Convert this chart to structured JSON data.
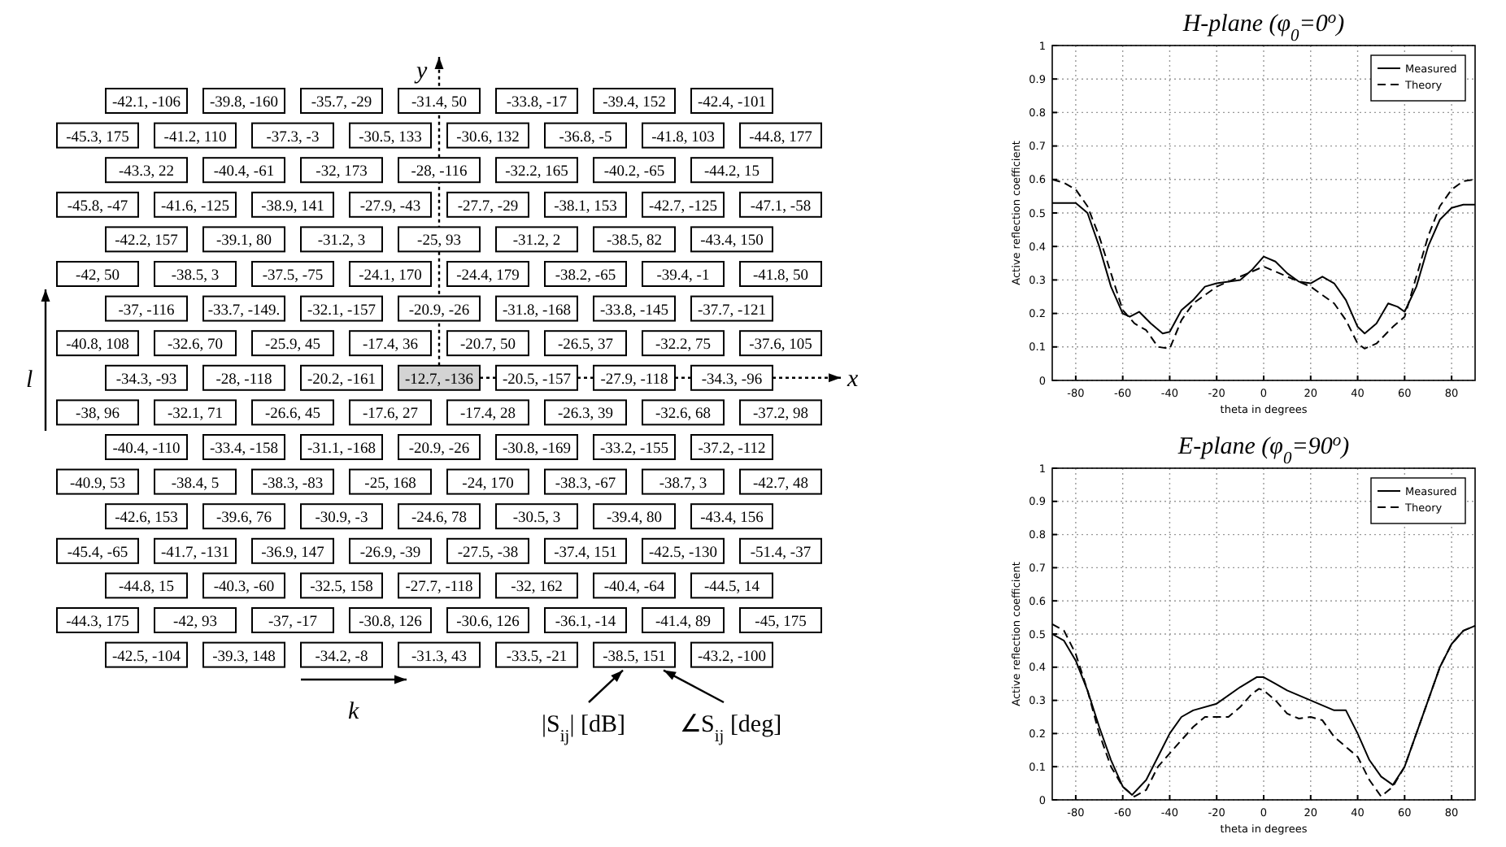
{
  "chart_data": [
    {
      "type": "other",
      "xlabel": "x",
      "ylabel": "y",
      "annotations": [
        "l",
        "k",
        "|S$_{ij}$| [dB]",
        "∠S$_{ij}$ [deg]"
      ],
      "cell_labels": [
        [
          "-42.1, -106",
          "-39.8, -160",
          "-35.7, -29",
          "-31.4, 50",
          "-33.8, -17",
          "-39.4, 152",
          "-42.4, -101"
        ],
        [
          "-45.3, 175",
          "-41.2, 110",
          "-37.3, -3",
          "-30.5, 133",
          "-30.6, 132",
          "-36.8, -5",
          "-41.8, 103",
          "-44.8, 177"
        ],
        [
          "-43.3, 22",
          "-40.4, -61",
          "-32, 173",
          "-28, -116",
          "-32.2, 165",
          "-40.2, -65",
          "-44.2, 15"
        ],
        [
          "-45.8, -47",
          "-41.6, -125",
          "-38.9, 141",
          "-27.9, -43",
          "-27.7, -29",
          "-38.1, 153",
          "-42.7, -125",
          "-47.1, -58"
        ],
        [
          "-42.2, 157",
          "-39.1, 80",
          "-31.2, 3",
          "-25, 93",
          "-31.2, 2",
          "-38.5, 82",
          "-43.4, 150"
        ],
        [
          "-42, 50",
          "-38.5, 3",
          "-37.5, -75",
          "-24.1, 170",
          "-24.4, 179",
          "-38.2, -65",
          "-39.4, -1",
          "-41.8, 50"
        ],
        [
          "-37, -116",
          "-33.7, -149.",
          "-32.1, -157",
          "-20.9, -26",
          "-31.8, -168",
          "-33.8, -145",
          "-37.7, -121"
        ],
        [
          "-40.8, 108",
          "-32.6, 70",
          "-25.9, 45",
          "-17.4, 36",
          "-20.7, 50",
          "-26.5, 37",
          "-32.2, 75",
          "-37.6, 105"
        ],
        [
          "-34.3, -93",
          "-28, -118",
          "-20.2, -161",
          "-12.7, -136",
          "-20.5, -157",
          "-27.9, -118",
          "-34.3, -96"
        ],
        [
          "-38, 96",
          "-32.1, 71",
          "-26.6, 45",
          "-17.6, 27",
          "-17.4, 28",
          "-26.3, 39",
          "-32.6, 68",
          "-37.2, 98"
        ],
        [
          "-40.4, -110",
          "-33.4, -158",
          "-31.1, -168",
          "-20.9, -26",
          "-30.8, -169",
          "-33.2, -155",
          "-37.2, -112"
        ],
        [
          "-40.9, 53",
          "-38.4, 5",
          "-38.3, -83",
          "-25, 168",
          "-24, 170",
          "-38.3, -67",
          "-38.7, 3",
          "-42.7, 48"
        ],
        [
          "-42.6, 153",
          "-39.6, 76",
          "-30.9, -3",
          "-24.6, 78",
          "-30.5, 3",
          "-39.4, 80",
          "-43.4, 156"
        ],
        [
          "-45.4, -65",
          "-41.7, -131",
          "-36.9, 147",
          "-26.9, -39",
          "-27.5, -38",
          "-37.4, 151",
          "-42.5, -130",
          "-51.4, -37"
        ],
        [
          "-44.8, 15",
          "-40.3, -60",
          "-32.5, 158",
          "-27.7, -118",
          "-32, 162",
          "-40.4, -64",
          "-44.5, 14"
        ],
        [
          "-44.3, 175",
          "-42, 93",
          "-37, -17",
          "-30.8, 126",
          "-30.6, 126",
          "-36.1, -14",
          "-41.4, 89",
          "-45, 175"
        ],
        [
          "-42.5, -104",
          "-39.3, 148",
          "-34.2, -8",
          "-31.3, 43",
          "-33.5, -21",
          "-38.5, 151",
          "-43.2, -100"
        ]
      ]
    },
    {
      "type": "line",
      "title": "H-plane (φ$_{0}$=0$^{o}$)",
      "xlabel": "theta in degrees",
      "ylabel": "Active reflection coefficient",
      "xlim": [
        -90,
        90
      ],
      "xticks": [
        -80,
        -60,
        -40,
        -20,
        0,
        20,
        40,
        60,
        80
      ],
      "ylim": [
        0,
        1
      ],
      "yticks": [
        0,
        0.1,
        0.2,
        0.3,
        0.4,
        0.5,
        0.6,
        0.7,
        0.8,
        0.9,
        1
      ],
      "grid": true,
      "legend": "top right",
      "series": [
        {
          "name": "Measured",
          "color": "#000000",
          "line_style": "solid",
          "x": [
            -90,
            -80,
            -75,
            -70,
            -65,
            -60,
            -57,
            -53,
            -48,
            -43,
            -40,
            -35,
            -30,
            -25,
            -20,
            -15,
            -10,
            -5,
            0,
            5,
            10,
            15,
            20,
            25,
            30,
            35,
            40,
            43,
            48,
            53,
            57,
            60,
            65,
            70,
            75,
            80,
            85,
            90
          ],
          "values": [
            0.53,
            0.53,
            0.5,
            0.4,
            0.28,
            0.2,
            0.19,
            0.205,
            0.17,
            0.14,
            0.145,
            0.21,
            0.24,
            0.28,
            0.29,
            0.295,
            0.3,
            0.33,
            0.37,
            0.355,
            0.32,
            0.295,
            0.29,
            0.31,
            0.29,
            0.24,
            0.16,
            0.14,
            0.17,
            0.23,
            0.22,
            0.205,
            0.28,
            0.4,
            0.48,
            0.515,
            0.525,
            0.525
          ]
        },
        {
          "name": "Theory",
          "color": "#000000",
          "line_style": "dashed",
          "x": [
            -90,
            -85,
            -80,
            -75,
            -70,
            -65,
            -60,
            -55,
            -50,
            -45,
            -40,
            -35,
            -30,
            -20,
            -10,
            0,
            10,
            20,
            30,
            35,
            40,
            43,
            48,
            55,
            60,
            65,
            70,
            75,
            80,
            85,
            90
          ],
          "values": [
            0.6,
            0.59,
            0.57,
            0.52,
            0.43,
            0.32,
            0.21,
            0.17,
            0.15,
            0.1,
            0.095,
            0.18,
            0.23,
            0.28,
            0.31,
            0.34,
            0.31,
            0.28,
            0.23,
            0.18,
            0.11,
            0.095,
            0.11,
            0.16,
            0.19,
            0.31,
            0.43,
            0.52,
            0.57,
            0.595,
            0.6
          ]
        }
      ]
    },
    {
      "type": "line",
      "title": "E-plane (φ$_{0}$=90$^{o}$)",
      "xlabel": "theta in degrees",
      "ylabel": "Active reflection coefficient",
      "xlim": [
        -90,
        90
      ],
      "xticks": [
        -80,
        -60,
        -40,
        -20,
        0,
        20,
        40,
        60,
        80
      ],
      "ylim": [
        0,
        1
      ],
      "yticks": [
        0,
        0.1,
        0.2,
        0.3,
        0.4,
        0.5,
        0.6,
        0.7,
        0.8,
        0.9,
        1
      ],
      "grid": true,
      "legend": "top right",
      "series": [
        {
          "name": "Measured",
          "color": "#000000",
          "line_style": "solid",
          "x": [
            -90,
            -85,
            -80,
            -75,
            -70,
            -65,
            -60,
            -56,
            -50,
            -45,
            -40,
            -35,
            -30,
            -20,
            -10,
            -3,
            0,
            5,
            10,
            20,
            30,
            35,
            40,
            45,
            50,
            55,
            60,
            65,
            70,
            75,
            80,
            85,
            90
          ],
          "values": [
            0.5,
            0.48,
            0.42,
            0.33,
            0.22,
            0.12,
            0.04,
            0.015,
            0.06,
            0.13,
            0.2,
            0.25,
            0.27,
            0.29,
            0.34,
            0.37,
            0.37,
            0.35,
            0.33,
            0.3,
            0.27,
            0.27,
            0.2,
            0.12,
            0.07,
            0.045,
            0.1,
            0.2,
            0.3,
            0.4,
            0.47,
            0.51,
            0.525
          ]
        },
        {
          "name": "Theory",
          "color": "#000000",
          "line_style": "dashed",
          "x": [
            -90,
            -85,
            -80,
            -75,
            -70,
            -65,
            -60,
            -55,
            -50,
            -45,
            -40,
            -35,
            -30,
            -25,
            -20,
            -15,
            -10,
            -5,
            -2,
            0,
            5,
            10,
            15,
            20,
            25,
            30,
            35,
            40,
            45,
            50,
            55,
            60,
            65,
            70,
            75,
            80,
            85,
            90
          ],
          "values": [
            0.53,
            0.51,
            0.44,
            0.33,
            0.2,
            0.1,
            0.04,
            0.01,
            0.03,
            0.1,
            0.14,
            0.18,
            0.22,
            0.25,
            0.25,
            0.25,
            0.28,
            0.32,
            0.335,
            0.33,
            0.3,
            0.26,
            0.245,
            0.25,
            0.24,
            0.19,
            0.16,
            0.13,
            0.06,
            0.01,
            0.04,
            0.1,
            0.2,
            0.3,
            0.4,
            0.47,
            0.51,
            0.525
          ]
        }
      ]
    }
  ]
}
